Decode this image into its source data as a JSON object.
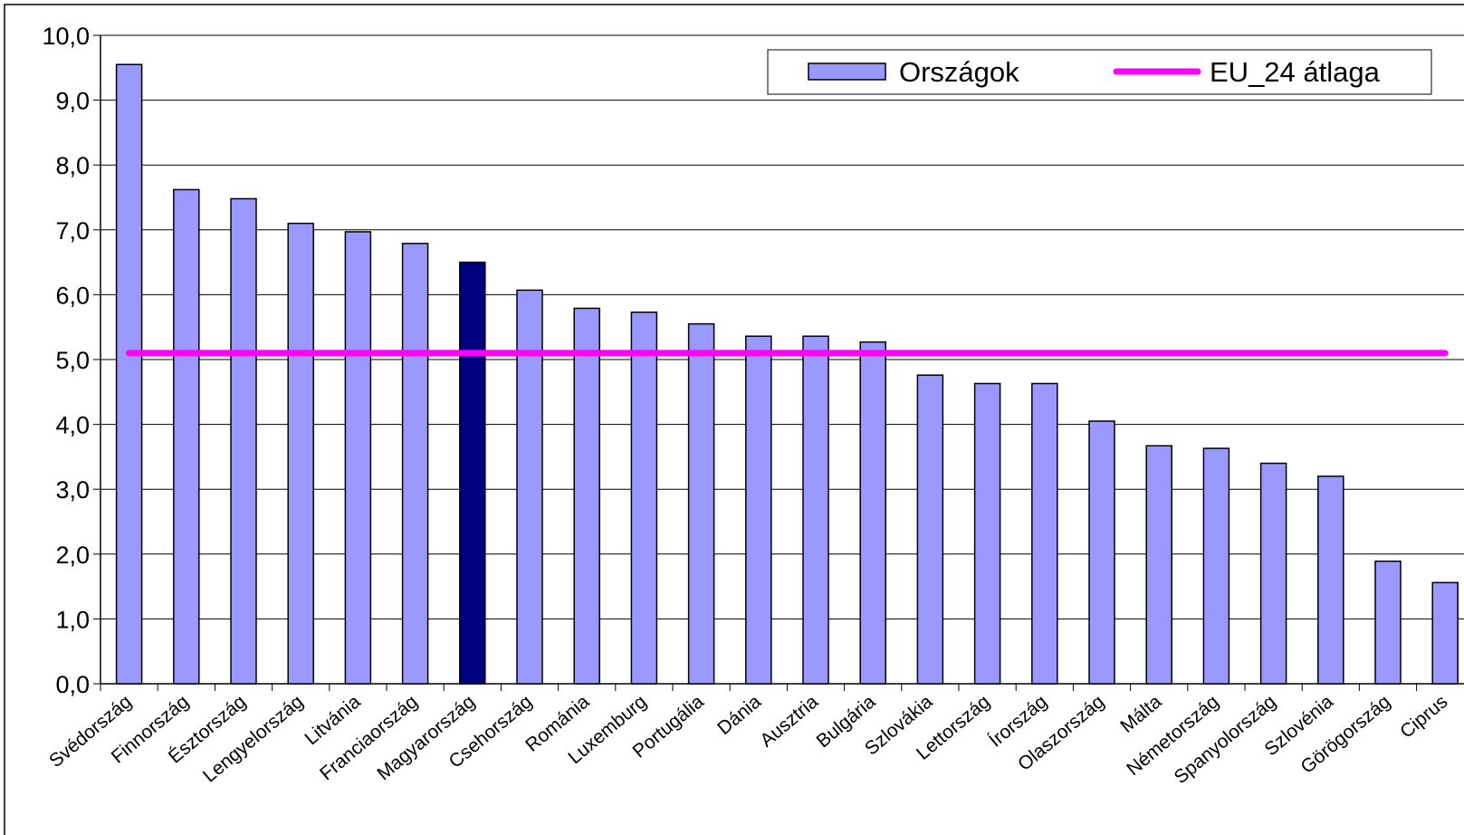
{
  "chart_data": {
    "type": "bar",
    "categories": [
      "Svédország",
      "Finnország",
      "Észtország",
      "Lengyelország",
      "Litvánia",
      "Franciaország",
      "Magyarország",
      "Csehország",
      "Románia",
      "Luxemburg",
      "Portugália",
      "Dánia",
      "Ausztria",
      "Bulgária",
      "Szlovákia",
      "Lettország",
      "Írország",
      "Olaszország",
      "Málta",
      "Németország",
      "Spanyolország",
      "Szlovénia",
      "Görögország",
      "Ciprus"
    ],
    "series": [
      {
        "name": "Országok",
        "type": "bar",
        "colors": [
          "#9999ff",
          "#9999ff",
          "#9999ff",
          "#9999ff",
          "#9999ff",
          "#9999ff",
          "#000080",
          "#9999ff",
          "#9999ff",
          "#9999ff",
          "#9999ff",
          "#9999ff",
          "#9999ff",
          "#9999ff",
          "#9999ff",
          "#9999ff",
          "#9999ff",
          "#9999ff",
          "#9999ff",
          "#9999ff",
          "#9999ff",
          "#9999ff",
          "#9999ff",
          "#9999ff"
        ],
        "legend_color": "#9999ff",
        "values": [
          9.55,
          7.62,
          7.48,
          7.1,
          6.97,
          6.79,
          6.5,
          6.07,
          5.79,
          5.73,
          5.55,
          5.36,
          5.36,
          5.27,
          4.76,
          4.63,
          4.63,
          4.05,
          3.67,
          3.63,
          3.4,
          3.2,
          1.89,
          1.56
        ]
      },
      {
        "name": "EU_24 átlaga",
        "type": "line",
        "color": "#ff00ff",
        "values": [
          5.1,
          5.1,
          5.1,
          5.1,
          5.1,
          5.1,
          5.1,
          5.1,
          5.1,
          5.1,
          5.1,
          5.1,
          5.1,
          5.1,
          5.1,
          5.1,
          5.1,
          5.1,
          5.1,
          5.1,
          5.1,
          5.1,
          5.1,
          5.1
        ]
      }
    ],
    "ylim": [
      0,
      10
    ],
    "yticks": [
      {
        "value": 0,
        "label": "0,0"
      },
      {
        "value": 1,
        "label": "1,0"
      },
      {
        "value": 2,
        "label": "2,0"
      },
      {
        "value": 3,
        "label": "3,0"
      },
      {
        "value": 4,
        "label": "4,0"
      },
      {
        "value": 5,
        "label": "5,0"
      },
      {
        "value": 6,
        "label": "6,0"
      },
      {
        "value": 7,
        "label": "7,0"
      },
      {
        "value": 8,
        "label": "8,0"
      },
      {
        "value": 9,
        "label": "9,0"
      },
      {
        "value": 10,
        "label": "10,0"
      }
    ],
    "grid": true,
    "legend": "top-right"
  }
}
